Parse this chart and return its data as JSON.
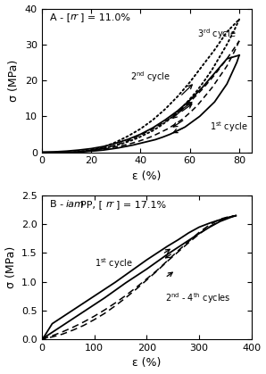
{
  "panel_A": {
    "xlabel": "ε (%)",
    "ylabel": "σ (MPa)",
    "xlim": [
      0,
      85
    ],
    "ylim": [
      0,
      40
    ],
    "xticks": [
      0,
      20,
      40,
      60,
      80
    ],
    "yticks": [
      0,
      10,
      20,
      30,
      40
    ],
    "c1_stretch": [
      [
        0,
        0
      ],
      [
        5,
        0.1
      ],
      [
        10,
        0.3
      ],
      [
        15,
        0.6
      ],
      [
        20,
        1.0
      ],
      [
        25,
        1.6
      ],
      [
        30,
        2.5
      ],
      [
        35,
        3.6
      ],
      [
        40,
        5.0
      ],
      [
        45,
        6.8
      ],
      [
        50,
        9.0
      ],
      [
        55,
        11.5
      ],
      [
        60,
        14.5
      ],
      [
        65,
        18
      ],
      [
        70,
        22
      ],
      [
        75,
        26
      ],
      [
        80,
        27
      ]
    ],
    "c1_relax": [
      [
        80,
        27
      ],
      [
        79,
        25
      ],
      [
        77,
        22
      ],
      [
        75,
        19
      ],
      [
        73,
        17
      ],
      [
        70,
        14
      ],
      [
        67,
        12
      ],
      [
        64,
        10
      ],
      [
        61,
        8.5
      ],
      [
        58,
        7
      ],
      [
        55,
        6
      ],
      [
        52,
        5
      ],
      [
        49,
        4.2
      ],
      [
        46,
        3.5
      ],
      [
        43,
        3
      ],
      [
        40,
        2.5
      ],
      [
        37,
        2
      ],
      [
        34,
        1.6
      ],
      [
        31,
        1.2
      ],
      [
        28,
        0.9
      ],
      [
        25,
        0.6
      ],
      [
        22,
        0.4
      ],
      [
        19,
        0.25
      ],
      [
        16,
        0.15
      ],
      [
        13,
        0.08
      ],
      [
        10,
        0.03
      ],
      [
        7,
        0.01
      ],
      [
        4,
        0
      ],
      [
        0,
        0
      ]
    ],
    "c2_stretch": [
      [
        13,
        0
      ],
      [
        16,
        0.1
      ],
      [
        20,
        0.4
      ],
      [
        25,
        1.0
      ],
      [
        30,
        2.0
      ],
      [
        35,
        3.2
      ],
      [
        40,
        4.8
      ],
      [
        45,
        6.5
      ],
      [
        50,
        8.5
      ],
      [
        55,
        11
      ],
      [
        60,
        14
      ],
      [
        65,
        17.5
      ],
      [
        70,
        21.5
      ],
      [
        75,
        26
      ],
      [
        80,
        31
      ]
    ],
    "c2_relax": [
      [
        80,
        31
      ],
      [
        78,
        28
      ],
      [
        75,
        24
      ],
      [
        72,
        21
      ],
      [
        69,
        18
      ],
      [
        66,
        15.5
      ],
      [
        63,
        13
      ],
      [
        60,
        11
      ],
      [
        57,
        9.2
      ],
      [
        54,
        7.8
      ],
      [
        51,
        6.5
      ],
      [
        48,
        5.5
      ],
      [
        45,
        4.5
      ],
      [
        42,
        3.7
      ],
      [
        39,
        3
      ],
      [
        36,
        2.4
      ],
      [
        33,
        1.9
      ],
      [
        30,
        1.5
      ],
      [
        27,
        1.1
      ],
      [
        24,
        0.8
      ],
      [
        21,
        0.5
      ],
      [
        18,
        0.3
      ],
      [
        15,
        0.15
      ]
    ],
    "c3_stretch": [
      [
        13,
        0
      ],
      [
        16,
        0.2
      ],
      [
        20,
        0.6
      ],
      [
        25,
        1.4
      ],
      [
        30,
        2.8
      ],
      [
        35,
        4.5
      ],
      [
        40,
        6.5
      ],
      [
        45,
        9
      ],
      [
        50,
        12
      ],
      [
        55,
        15.5
      ],
      [
        60,
        19.5
      ],
      [
        65,
        24
      ],
      [
        70,
        28.5
      ],
      [
        75,
        33.5
      ],
      [
        80,
        37
      ]
    ],
    "c3_relax": [
      [
        80,
        37
      ],
      [
        78,
        34
      ],
      [
        75,
        30
      ],
      [
        72,
        26.5
      ],
      [
        69,
        23
      ],
      [
        66,
        20
      ],
      [
        63,
        17.2
      ],
      [
        60,
        14.8
      ],
      [
        57,
        12.5
      ],
      [
        54,
        10.5
      ],
      [
        51,
        8.8
      ],
      [
        48,
        7.3
      ],
      [
        45,
        6
      ],
      [
        42,
        5
      ],
      [
        39,
        4
      ],
      [
        36,
        3.2
      ],
      [
        33,
        2.5
      ],
      [
        30,
        1.9
      ],
      [
        27,
        1.4
      ],
      [
        24,
        1
      ],
      [
        21,
        0.7
      ],
      [
        18,
        0.4
      ],
      [
        15,
        0.2
      ]
    ],
    "lbl1_x": 68,
    "lbl1_y": 7,
    "lbl2_x": 36,
    "lbl2_y": 21,
    "lbl3_x": 63,
    "lbl3_y": 33
  },
  "panel_B": {
    "xlabel": "ε (%)",
    "ylabel": "σ (MPa)",
    "xlim": [
      0,
      400
    ],
    "ylim": [
      0,
      2.5
    ],
    "xticks": [
      0,
      100,
      200,
      300,
      400
    ],
    "yticks": [
      0.0,
      0.5,
      1.0,
      1.5,
      2.0,
      2.5
    ],
    "c1_stretch": [
      [
        0,
        0
      ],
      [
        10,
        0.06
      ],
      [
        20,
        0.12
      ],
      [
        40,
        0.24
      ],
      [
        60,
        0.36
      ],
      [
        80,
        0.48
      ],
      [
        100,
        0.6
      ],
      [
        120,
        0.72
      ],
      [
        140,
        0.85
      ],
      [
        160,
        0.98
      ],
      [
        180,
        1.1
      ],
      [
        200,
        1.22
      ],
      [
        220,
        1.35
      ],
      [
        240,
        1.48
      ],
      [
        260,
        1.6
      ],
      [
        280,
        1.72
      ],
      [
        300,
        1.84
      ],
      [
        320,
        1.95
      ],
      [
        340,
        2.05
      ],
      [
        360,
        2.12
      ],
      [
        370,
        2.15
      ]
    ],
    "c1_relax": [
      [
        370,
        2.15
      ],
      [
        360,
        2.13
      ],
      [
        340,
        2.08
      ],
      [
        320,
        2.02
      ],
      [
        300,
        1.95
      ],
      [
        280,
        1.85
      ],
      [
        260,
        1.73
      ],
      [
        240,
        1.62
      ],
      [
        220,
        1.5
      ],
      [
        200,
        1.38
      ],
      [
        180,
        1.25
      ],
      [
        160,
        1.12
      ],
      [
        140,
        0.99
      ],
      [
        120,
        0.87
      ],
      [
        100,
        0.75
      ],
      [
        80,
        0.63
      ],
      [
        60,
        0.51
      ],
      [
        40,
        0.39
      ],
      [
        20,
        0.27
      ],
      [
        5,
        0.05
      ],
      [
        0,
        0
      ]
    ],
    "c24_stretch": [
      [
        0,
        0
      ],
      [
        10,
        0.03
      ],
      [
        20,
        0.06
      ],
      [
        40,
        0.13
      ],
      [
        60,
        0.21
      ],
      [
        80,
        0.3
      ],
      [
        100,
        0.4
      ],
      [
        120,
        0.51
      ],
      [
        140,
        0.63
      ],
      [
        160,
        0.76
      ],
      [
        180,
        0.9
      ],
      [
        200,
        1.05
      ],
      [
        220,
        1.2
      ],
      [
        240,
        1.37
      ],
      [
        260,
        1.54
      ],
      [
        280,
        1.7
      ],
      [
        300,
        1.86
      ],
      [
        320,
        1.99
      ],
      [
        340,
        2.09
      ],
      [
        360,
        2.14
      ],
      [
        370,
        2.15
      ]
    ],
    "c24_relax": [
      [
        370,
        2.15
      ],
      [
        360,
        2.13
      ],
      [
        340,
        2.06
      ],
      [
        320,
        1.96
      ],
      [
        300,
        1.83
      ],
      [
        280,
        1.68
      ],
      [
        260,
        1.52
      ],
      [
        240,
        1.36
      ],
      [
        220,
        1.19
      ],
      [
        200,
        1.03
      ],
      [
        180,
        0.87
      ],
      [
        160,
        0.72
      ],
      [
        140,
        0.58
      ],
      [
        120,
        0.45
      ],
      [
        100,
        0.34
      ],
      [
        80,
        0.24
      ],
      [
        60,
        0.16
      ],
      [
        40,
        0.09
      ],
      [
        20,
        0.04
      ],
      [
        5,
        0.01
      ],
      [
        0,
        0
      ]
    ],
    "lbl1_x": 100,
    "lbl1_y": 1.32,
    "lbl24_x": 235,
    "lbl24_y": 0.72
  }
}
